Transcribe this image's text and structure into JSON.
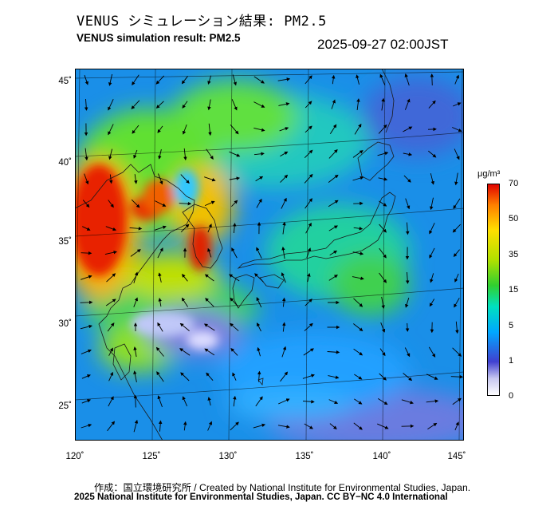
{
  "header": {
    "title_jp": "VENUS シミュレーション結果: PM2.5",
    "title_en": "VENUS simulation result: PM2.5",
    "timestamp": "2025-09-27 02:00JST"
  },
  "map": {
    "region": "East Asia / Japan",
    "lon_range": [
      120,
      145
    ],
    "lat_range": [
      23,
      46
    ],
    "lat_ticks": [
      {
        "value": 45,
        "label": "45˚"
      },
      {
        "value": 40,
        "label": "40˚"
      },
      {
        "value": 35,
        "label": "35˚"
      },
      {
        "value": 30,
        "label": "30˚"
      },
      {
        "value": 25,
        "label": "25˚"
      }
    ],
    "lon_ticks": [
      {
        "value": 120,
        "label": "120˚"
      },
      {
        "value": 125,
        "label": "125˚"
      },
      {
        "value": 130,
        "label": "130˚"
      },
      {
        "value": 135,
        "label": "135˚"
      },
      {
        "value": 140,
        "label": "140˚"
      },
      {
        "value": 145,
        "label": "145˚"
      }
    ],
    "layers": [
      "pm25-concentration",
      "wind-vectors",
      "coastlines"
    ]
  },
  "colorbar": {
    "unit": "μg/m³",
    "labels": [
      "70",
      "50",
      "35",
      "15",
      "5",
      "1",
      "0"
    ],
    "colors": [
      "#ffffff",
      "#4040d0",
      "#00a8ff",
      "#00e0c0",
      "#30d030",
      "#b0e000",
      "#ffe000",
      "#ff8000",
      "#e00000"
    ]
  },
  "footer": {
    "credit": "作成：国立環境研究所 / Created by National Institute for Environmental Studies, Japan.",
    "copyright": "2025 National Institute for Environmental Studies, Japan. CC BY−NC 4.0 International"
  }
}
